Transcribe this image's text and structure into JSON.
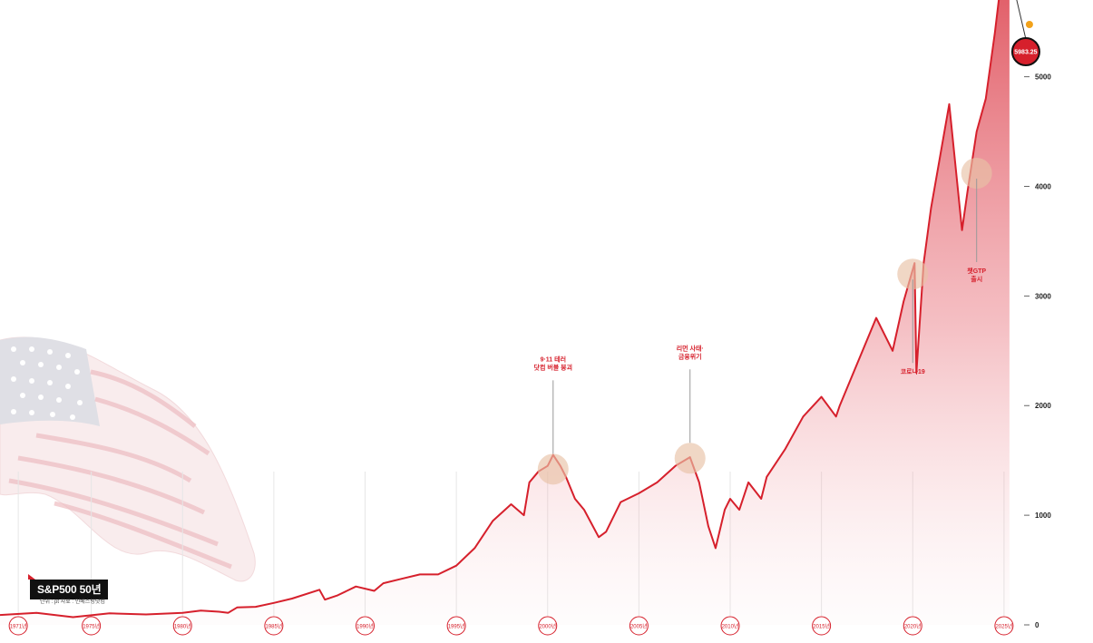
{
  "chart_data": {
    "type": "area",
    "title": "S&P500 50년",
    "subtitle": "단위 : pt  자료 : 인베스팅닷컴",
    "xlim": [
      1970.0,
      2025.9
    ],
    "ylim": [
      0,
      5700
    ],
    "y_ticks": [
      0,
      1000,
      2000,
      3000,
      4000,
      5000
    ],
    "x_ticks": [
      {
        "x": 1971,
        "label": "1971년"
      },
      {
        "x": 1975,
        "label": "1975년"
      },
      {
        "x": 1980,
        "label": "1980년"
      },
      {
        "x": 1985,
        "label": "1985년"
      },
      {
        "x": 1990,
        "label": "1990년"
      },
      {
        "x": 1995,
        "label": "1995년"
      },
      {
        "x": 2000,
        "label": "2000년"
      },
      {
        "x": 2005,
        "label": "2005년"
      },
      {
        "x": 2010,
        "label": "2010년"
      },
      {
        "x": 2015,
        "label": "2015년"
      },
      {
        "x": 2020,
        "label": "2020년"
      },
      {
        "x": 2025,
        "label": "2025년"
      }
    ],
    "series": [
      {
        "color": "#d6202c",
        "points": [
          [
            1970.0,
            90
          ],
          [
            1972.0,
            110
          ],
          [
            1974.0,
            70
          ],
          [
            1976.0,
            105
          ],
          [
            1978.0,
            95
          ],
          [
            1980.0,
            110
          ],
          [
            1981.0,
            130
          ],
          [
            1982.0,
            120
          ],
          [
            1982.5,
            110
          ],
          [
            1983.0,
            160
          ],
          [
            1984.0,
            165
          ],
          [
            1985.0,
            200
          ],
          [
            1986.0,
            240
          ],
          [
            1987.5,
            320
          ],
          [
            1987.8,
            230
          ],
          [
            1988.5,
            270
          ],
          [
            1989.5,
            350
          ],
          [
            1990.5,
            310
          ],
          [
            1991.0,
            380
          ],
          [
            1992.0,
            420
          ],
          [
            1993.0,
            460
          ],
          [
            1994.0,
            460
          ],
          [
            1995.0,
            540
          ],
          [
            1996.0,
            700
          ],
          [
            1997.0,
            950
          ],
          [
            1998.0,
            1100
          ],
          [
            1998.7,
            1000
          ],
          [
            1999.0,
            1300
          ],
          [
            1999.5,
            1400
          ],
          [
            2000.0,
            1450
          ],
          [
            2000.3,
            1550
          ],
          [
            2000.7,
            1450
          ],
          [
            2001.0,
            1350
          ],
          [
            2001.5,
            1150
          ],
          [
            2002.0,
            1050
          ],
          [
            2002.8,
            800
          ],
          [
            2003.2,
            850
          ],
          [
            2004.0,
            1120
          ],
          [
            2005.0,
            1200
          ],
          [
            2006.0,
            1300
          ],
          [
            2007.0,
            1450
          ],
          [
            2007.8,
            1530
          ],
          [
            2008.3,
            1300
          ],
          [
            2008.8,
            900
          ],
          [
            2009.2,
            700
          ],
          [
            2009.7,
            1050
          ],
          [
            2010.0,
            1150
          ],
          [
            2010.5,
            1050
          ],
          [
            2011.0,
            1300
          ],
          [
            2011.7,
            1150
          ],
          [
            2012.0,
            1350
          ],
          [
            2013.0,
            1600
          ],
          [
            2014.0,
            1900
          ],
          [
            2015.0,
            2080
          ],
          [
            2015.8,
            1900
          ],
          [
            2016.0,
            2000
          ],
          [
            2017.0,
            2400
          ],
          [
            2018.0,
            2800
          ],
          [
            2018.9,
            2500
          ],
          [
            2019.5,
            2950
          ],
          [
            2020.1,
            3300
          ],
          [
            2020.2,
            2300
          ],
          [
            2020.6,
            3300
          ],
          [
            2021.0,
            3800
          ],
          [
            2022.0,
            4750
          ],
          [
            2022.7,
            3600
          ],
          [
            2023.0,
            3950
          ],
          [
            2023.5,
            4500
          ],
          [
            2024.0,
            4800
          ],
          [
            2024.5,
            5400
          ],
          [
            2025.0,
            6100
          ],
          [
            2025.3,
            5980
          ]
        ]
      }
    ],
    "annotations": [
      {
        "x": 2000.3,
        "y": 1420,
        "label": [
          "9·11 테러",
          "닷컴 버블 붕괴"
        ]
      },
      {
        "x": 2007.8,
        "y": 1520,
        "label": [
          "리먼 사태·",
          "금융위기"
        ]
      },
      {
        "x": 2020.0,
        "y": 3200,
        "label": [
          "코로나19"
        ]
      },
      {
        "x": 2023.5,
        "y": 4120,
        "label": [
          "챗GTP",
          "출시"
        ]
      }
    ],
    "end_badge": {
      "x": 2025.3,
      "y": 5983.25,
      "label": "5983.25"
    }
  }
}
